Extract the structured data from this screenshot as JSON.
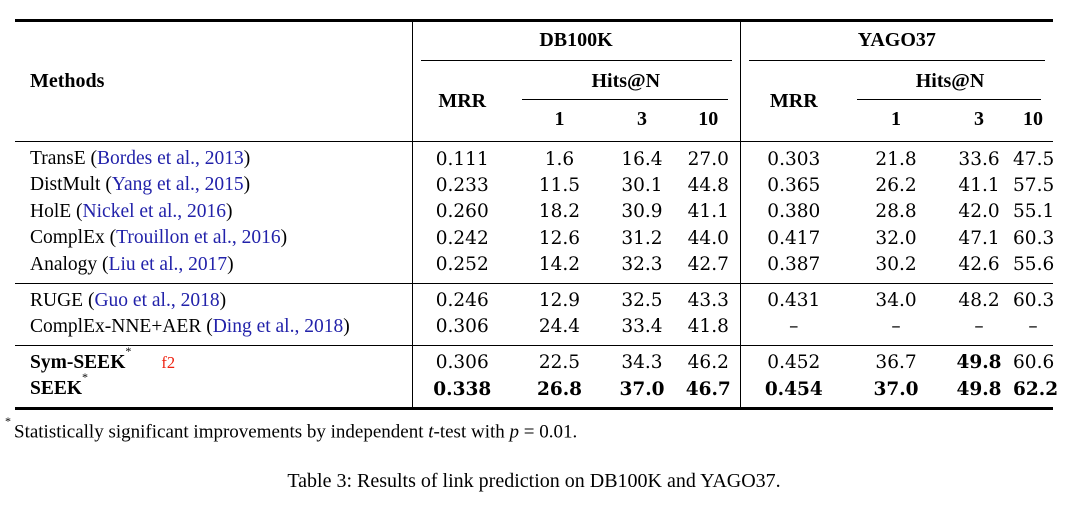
{
  "header": {
    "methods": "Methods",
    "dataset1": "DB100K",
    "dataset2": "YAGO37",
    "mrr": "MRR",
    "hits": "Hits@N",
    "h1": "1",
    "h3": "3",
    "h10": "10"
  },
  "punct": {
    "open": "(",
    "close": ")"
  },
  "rows": [
    {
      "method": "TransE",
      "citation": "Bordes et al., 2013",
      "db": [
        "0.111",
        "1.6",
        "16.4",
        "27.0"
      ],
      "yago": [
        "0.303",
        "21.8",
        "33.6",
        "47.5"
      ]
    },
    {
      "method": "DistMult",
      "citation": "Yang et al., 2015",
      "db": [
        "0.233",
        "11.5",
        "30.1",
        "44.8"
      ],
      "yago": [
        "0.365",
        "26.2",
        "41.1",
        "57.5"
      ]
    },
    {
      "method": "HolE",
      "citation": "Nickel et al., 2016",
      "db": [
        "0.260",
        "18.2",
        "30.9",
        "41.1"
      ],
      "yago": [
        "0.380",
        "28.8",
        "42.0",
        "55.1"
      ]
    },
    {
      "method": "ComplEx",
      "citation": "Trouillon et al., 2016",
      "db": [
        "0.242",
        "12.6",
        "31.2",
        "44.0"
      ],
      "yago": [
        "0.417",
        "32.0",
        "47.1",
        "60.3"
      ]
    },
    {
      "method": "Analogy",
      "citation": "Liu et al., 2017",
      "db": [
        "0.252",
        "14.2",
        "32.3",
        "42.7"
      ],
      "yago": [
        "0.387",
        "30.2",
        "42.6",
        "55.6"
      ]
    },
    {
      "method": "RUGE",
      "citation": "Guo et al., 2018",
      "db": [
        "0.246",
        "12.9",
        "32.5",
        "43.3"
      ],
      "yago": [
        "0.431",
        "34.0",
        "48.2",
        "60.3"
      ]
    },
    {
      "method": "ComplEx-NNE+AER",
      "citation": "Ding et al., 2018",
      "db": [
        "0.306",
        "24.4",
        "33.4",
        "41.8"
      ],
      "yago": [
        "–",
        "–",
        "–",
        "–"
      ]
    },
    {
      "method": "Sym-SEEK",
      "marker": "*",
      "annotation": "f2",
      "db": [
        "0.306",
        "22.5",
        "34.3",
        "46.2"
      ],
      "yago": [
        "0.452",
        "36.7",
        "49.8",
        "60.6"
      ]
    },
    {
      "method": "SEEK",
      "marker": "*",
      "db": [
        "0.338",
        "26.8",
        "37.0",
        "46.7"
      ],
      "yago": [
        "0.454",
        "37.0",
        "49.8",
        "62.2"
      ]
    }
  ],
  "footnote": {
    "marker": "*",
    "text1": "Statistically significant improvements by independent ",
    "italic1": "t",
    "text2": "-test with ",
    "italic2": "p",
    "text3": " = 0.01."
  },
  "caption": "Table 3: Results of link prediction on DB100K and YAGO37.",
  "colors": {
    "citation_link": "#2222aa",
    "annotation": "#ee2211",
    "rule": "#000000"
  }
}
